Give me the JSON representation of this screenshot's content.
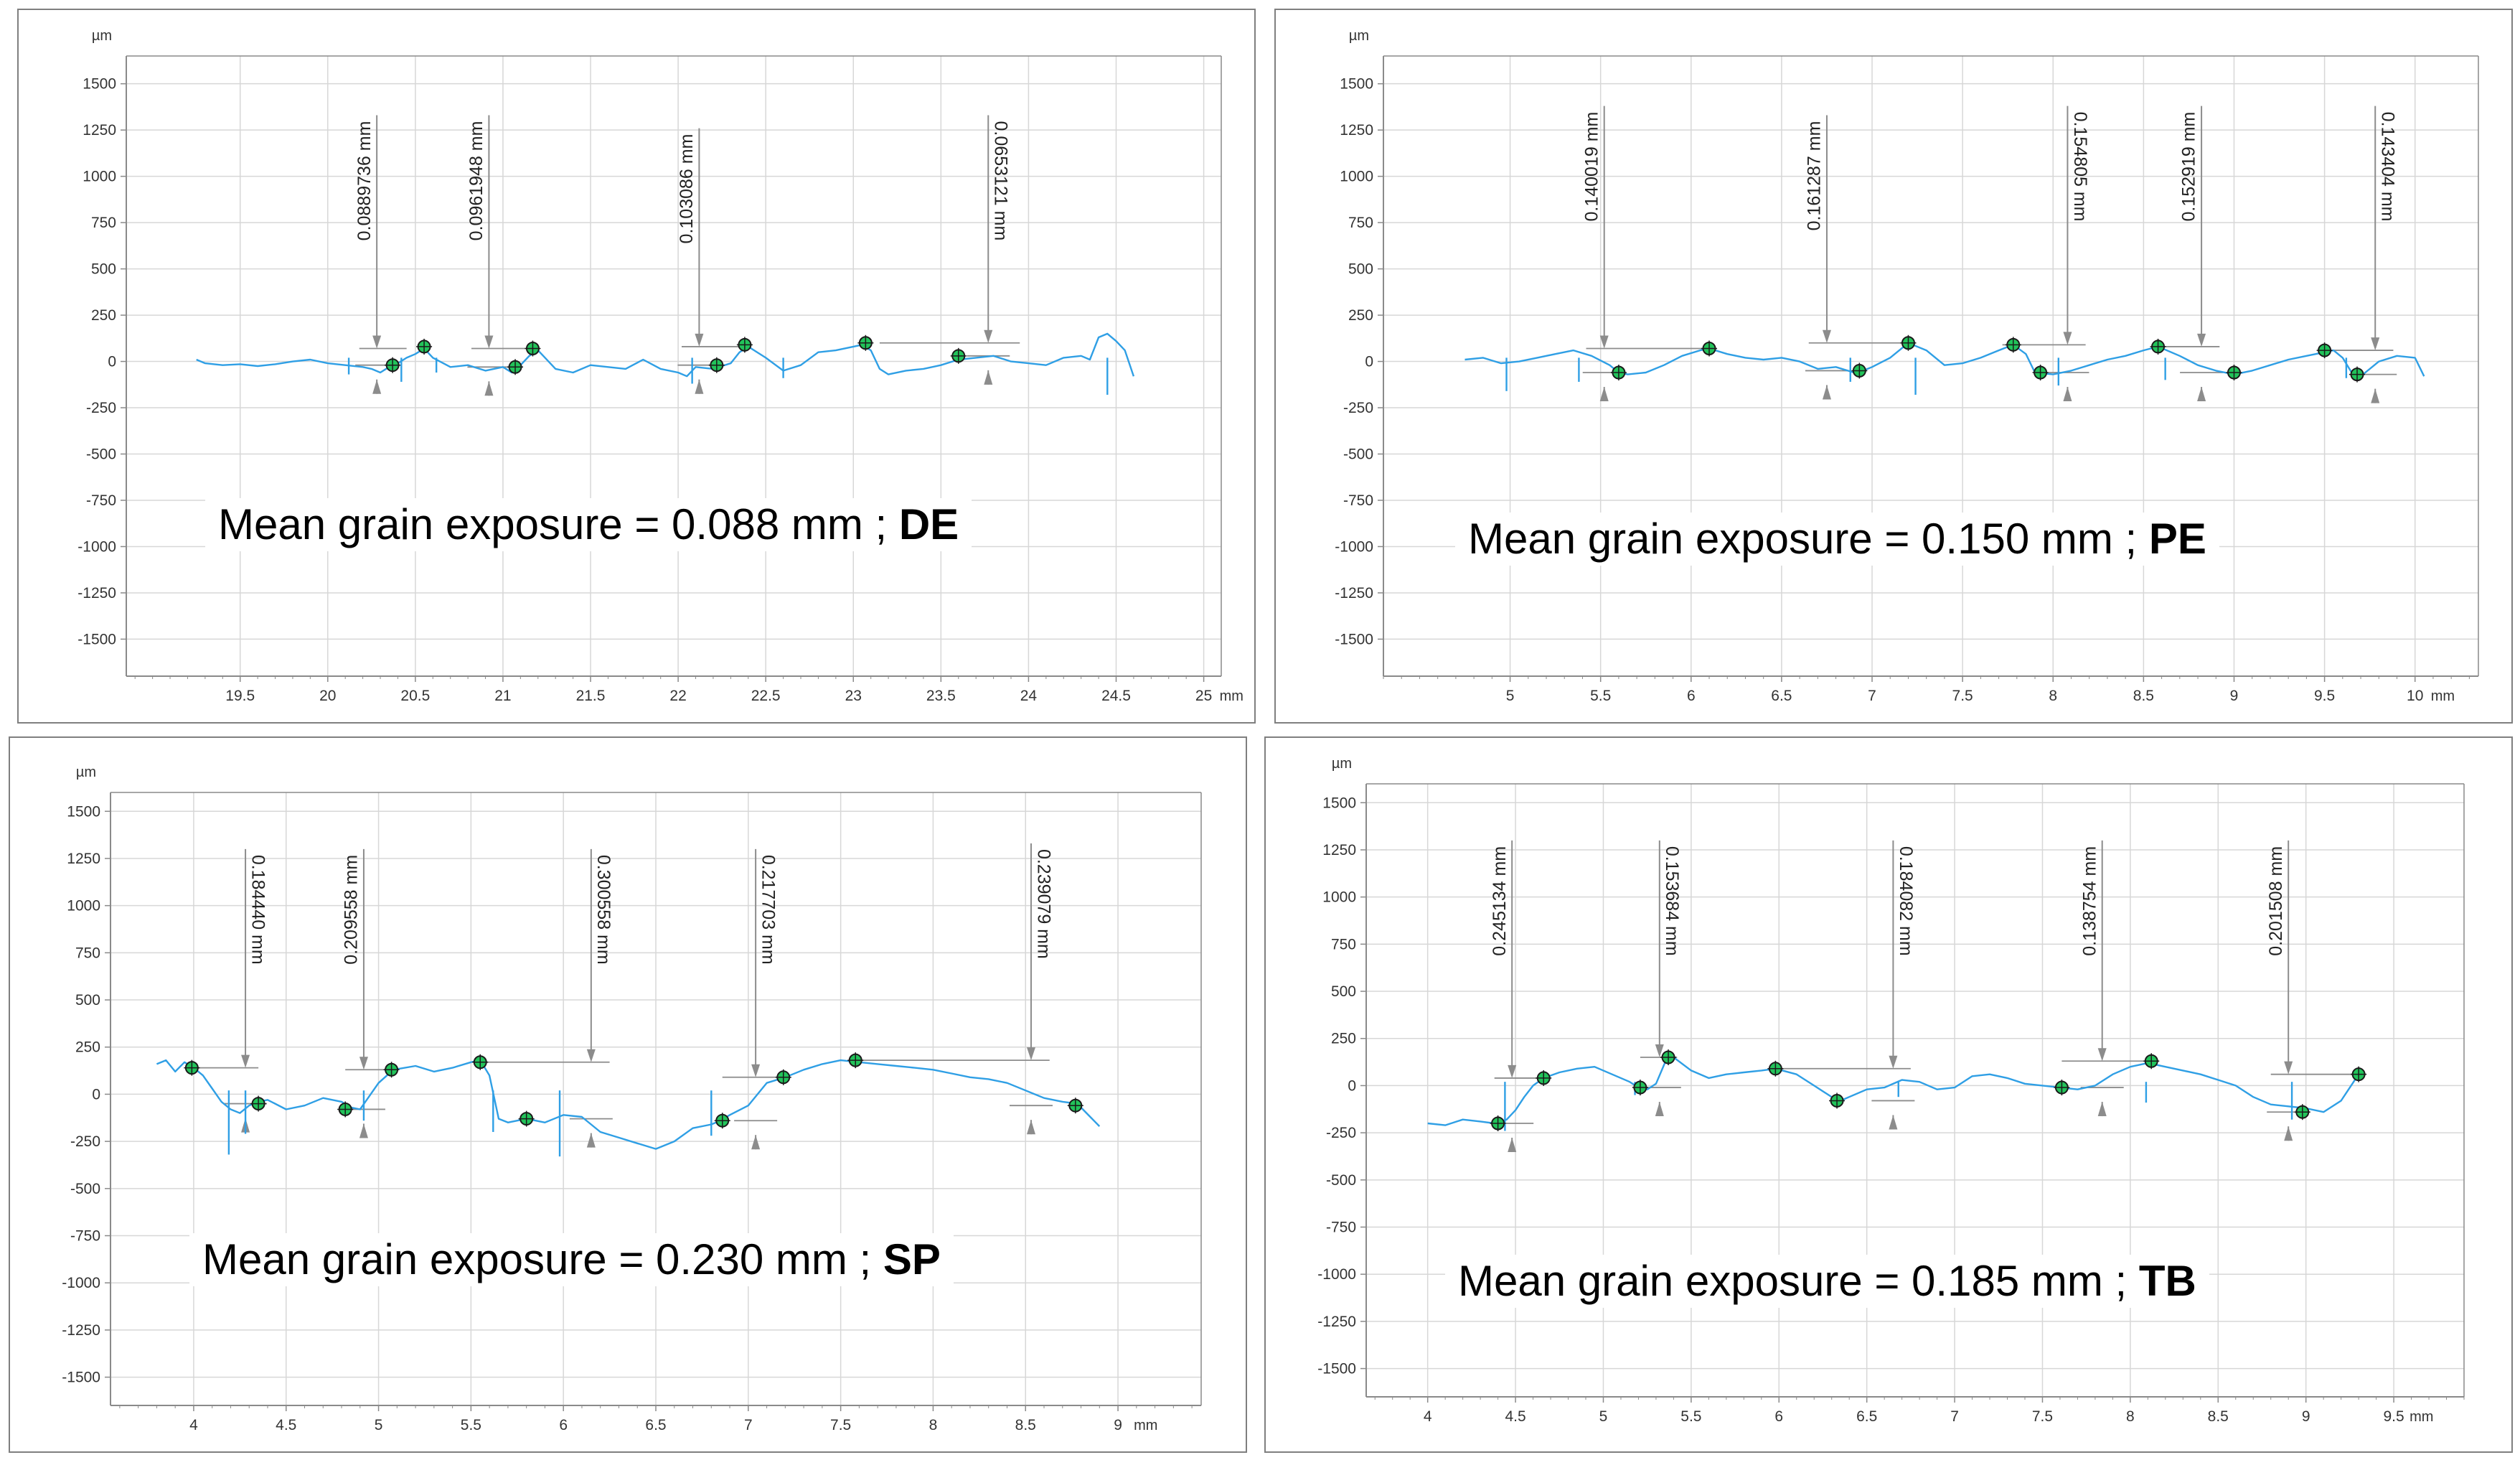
{
  "colors": {
    "profile": "#2f9fe5",
    "marker_fill": "#22c35a",
    "marker_stroke": "#1a1a1a",
    "measure": "#8c8c8c",
    "grid": "#d7d7d7",
    "axis": "#8a8a8a"
  },
  "chart_data": [
    {
      "type": "line",
      "id": "DE",
      "y_unit": "µm",
      "x_unit": "mm",
      "ylim": [
        -1700,
        1650
      ],
      "xlim": [
        18.85,
        25.1
      ],
      "yticks": [
        -1500,
        -1250,
        -1000,
        -750,
        -500,
        -250,
        0,
        250,
        500,
        750,
        1000,
        1250,
        1500
      ],
      "xticks": [
        19.5,
        20,
        20.5,
        21,
        21.5,
        22,
        22.5,
        23,
        23.5,
        24,
        24.5,
        25
      ],
      "grid": true,
      "caption_text": "Mean grain exposure = 0.088 mm ; ",
      "caption_tag": "DE",
      "profile": {
        "x": [
          19.25,
          19.3,
          19.4,
          19.5,
          19.6,
          19.7,
          19.8,
          19.9,
          20.0,
          20.1,
          20.2,
          20.25,
          20.3,
          20.35,
          20.4,
          20.45,
          20.5,
          20.55,
          20.6,
          20.7,
          20.8,
          20.9,
          21.0,
          21.05,
          21.1,
          21.15,
          21.2,
          21.3,
          21.4,
          21.5,
          21.6,
          21.7,
          21.8,
          21.9,
          22.0,
          22.05,
          22.1,
          22.2,
          22.3,
          22.35,
          22.4,
          22.5,
          22.6,
          22.7,
          22.8,
          22.9,
          23.0,
          23.05,
          23.1,
          23.15,
          23.2,
          23.3,
          23.4,
          23.5,
          23.6,
          23.7,
          23.8,
          23.9,
          24.0,
          24.1,
          24.2,
          24.3,
          24.35,
          24.4,
          24.45,
          24.5,
          24.55,
          24.6
        ],
        "y": [
          10,
          -10,
          -20,
          -15,
          -25,
          -15,
          0,
          10,
          -10,
          -20,
          -30,
          -40,
          -60,
          -30,
          -10,
          20,
          40,
          70,
          20,
          -30,
          -20,
          -50,
          -30,
          -60,
          -20,
          30,
          60,
          -40,
          -60,
          -20,
          -30,
          -40,
          10,
          -40,
          -60,
          -80,
          -30,
          -40,
          -10,
          50,
          80,
          20,
          -50,
          -20,
          50,
          60,
          80,
          90,
          60,
          -40,
          -70,
          -50,
          -40,
          -20,
          10,
          20,
          30,
          0,
          -10,
          -20,
          20,
          30,
          10,
          130,
          150,
          110,
          60,
          -80
        ]
      },
      "spikes": [
        {
          "x": 20.12,
          "y": -70
        },
        {
          "x": 20.42,
          "y": -110
        },
        {
          "x": 20.62,
          "y": -60
        },
        {
          "x": 22.08,
          "y": -120
        },
        {
          "x": 22.6,
          "y": -90
        },
        {
          "x": 24.45,
          "y": -180
        }
      ],
      "markers": [
        {
          "x": 20.37,
          "y": -20
        },
        {
          "x": 20.55,
          "y": 80
        },
        {
          "x": 21.07,
          "y": -30
        },
        {
          "x": 21.17,
          "y": 70
        },
        {
          "x": 22.22,
          "y": -20
        },
        {
          "x": 22.38,
          "y": 90
        },
        {
          "x": 23.07,
          "y": 100
        },
        {
          "x": 23.6,
          "y": 30
        }
      ],
      "measurements": [
        {
          "label": "0.0889736 mm",
          "x": 20.28,
          "y_top": 1330,
          "y_hi": 70,
          "y_lo": -20,
          "hx0": 20.18,
          "hx1": 20.45,
          "label_side": "left"
        },
        {
          "label": "0.0961948 mm",
          "x": 20.92,
          "y_top": 1330,
          "y_hi": 70,
          "y_lo": -30,
          "hx0": 20.82,
          "hx1": 21.15,
          "label_side": "left"
        },
        {
          "label": "0.103086 mm",
          "x": 22.12,
          "y_top": 1260,
          "y_hi": 80,
          "y_lo": -20,
          "hx0": 22.02,
          "hx1": 22.38,
          "label_side": "left"
        },
        {
          "label": "0.0653121 mm",
          "x": 23.77,
          "y_top": 1330,
          "y_hi": 100,
          "y_lo": 30,
          "hx0": 23.15,
          "hx1": 23.95,
          "label_side": "right"
        }
      ]
    },
    {
      "type": "line",
      "id": "PE",
      "y_unit": "µm",
      "x_unit": "mm",
      "ylim": [
        -1700,
        1650
      ],
      "xlim": [
        4.3,
        10.35
      ],
      "yticks": [
        -1500,
        -1250,
        -1000,
        -750,
        -500,
        -250,
        0,
        250,
        500,
        750,
        1000,
        1250,
        1500
      ],
      "xticks": [
        5,
        5.5,
        6,
        6.5,
        7,
        7.5,
        8,
        8.5,
        9,
        9.5,
        10
      ],
      "grid": true,
      "caption_text": "Mean grain exposure = 0.150 mm ; ",
      "caption_tag": "PE",
      "profile": {
        "x": [
          4.75,
          4.85,
          4.95,
          5.05,
          5.15,
          5.25,
          5.35,
          5.45,
          5.55,
          5.6,
          5.65,
          5.75,
          5.85,
          5.95,
          6.05,
          6.1,
          6.2,
          6.3,
          6.4,
          6.5,
          6.6,
          6.7,
          6.8,
          6.9,
          6.95,
          7.0,
          7.1,
          7.2,
          7.3,
          7.4,
          7.5,
          7.6,
          7.7,
          7.78,
          7.85,
          7.9,
          8.0,
          8.1,
          8.2,
          8.3,
          8.4,
          8.5,
          8.58,
          8.7,
          8.8,
          8.9,
          9.0,
          9.1,
          9.2,
          9.3,
          9.4,
          9.5,
          9.55,
          9.6,
          9.65,
          9.7,
          9.8,
          9.9,
          10.0,
          10.05
        ],
        "y": [
          10,
          20,
          -10,
          0,
          20,
          40,
          60,
          30,
          -20,
          -60,
          -70,
          -60,
          -20,
          30,
          60,
          70,
          40,
          20,
          10,
          20,
          0,
          -40,
          -30,
          -60,
          -50,
          -30,
          20,
          100,
          60,
          -20,
          -10,
          20,
          60,
          90,
          40,
          -60,
          -70,
          -50,
          -20,
          10,
          30,
          60,
          80,
          30,
          -20,
          -50,
          -70,
          -50,
          -20,
          10,
          30,
          50,
          60,
          20,
          -60,
          -80,
          0,
          30,
          20,
          -80
        ]
      },
      "spikes": [
        {
          "x": 4.98,
          "y": -160
        },
        {
          "x": 5.38,
          "y": -110
        },
        {
          "x": 6.88,
          "y": -110
        },
        {
          "x": 7.24,
          "y": -180
        },
        {
          "x": 8.03,
          "y": -130
        },
        {
          "x": 8.62,
          "y": -100
        },
        {
          "x": 9.62,
          "y": -90
        }
      ],
      "markers": [
        {
          "x": 5.6,
          "y": -60
        },
        {
          "x": 6.1,
          "y": 70
        },
        {
          "x": 6.93,
          "y": -50
        },
        {
          "x": 7.2,
          "y": 100
        },
        {
          "x": 7.78,
          "y": 90
        },
        {
          "x": 7.93,
          "y": -60
        },
        {
          "x": 8.58,
          "y": 80
        },
        {
          "x": 9.0,
          "y": -60
        },
        {
          "x": 9.5,
          "y": 60
        },
        {
          "x": 9.68,
          "y": -70
        }
      ],
      "measurements": [
        {
          "label": "0.140019 mm",
          "x": 5.52,
          "y_top": 1380,
          "y_hi": 70,
          "y_lo": -60,
          "hx0": 5.42,
          "hx1": 6.08,
          "label_side": "left"
        },
        {
          "label": "0.161287 mm",
          "x": 6.75,
          "y_top": 1330,
          "y_hi": 100,
          "y_lo": -50,
          "hx0": 6.65,
          "hx1": 7.2,
          "label_side": "left"
        },
        {
          "label": "0.154805 mm",
          "x": 8.08,
          "y_top": 1380,
          "y_hi": 90,
          "y_lo": -60,
          "hx0": 7.72,
          "hx1": 8.18,
          "label_side": "right"
        },
        {
          "label": "0.152919 mm",
          "x": 8.82,
          "y_top": 1380,
          "y_hi": 80,
          "y_lo": -60,
          "hx0": 8.58,
          "hx1": 8.92,
          "label_side": "left"
        },
        {
          "label": "0.143404 mm",
          "x": 9.78,
          "y_top": 1380,
          "y_hi": 60,
          "y_lo": -70,
          "hx0": 9.5,
          "hx1": 9.88,
          "label_side": "right"
        }
      ]
    },
    {
      "type": "line",
      "id": "SP",
      "y_unit": "µm",
      "x_unit": "mm",
      "ylim": [
        -1650,
        1600
      ],
      "xlim": [
        3.55,
        9.45
      ],
      "yticks": [
        -1500,
        -1250,
        -1000,
        -750,
        -500,
        -250,
        0,
        250,
        500,
        750,
        1000,
        1250,
        1500
      ],
      "xticks": [
        4,
        4.5,
        5,
        5.5,
        6,
        6.5,
        7,
        7.5,
        8,
        8.5,
        9
      ],
      "grid": true,
      "caption_text": "Mean grain exposure = 0.230 mm ; ",
      "caption_tag": "SP",
      "profile": {
        "x": [
          3.8,
          3.85,
          3.9,
          3.95,
          4.0,
          4.05,
          4.1,
          4.15,
          4.2,
          4.25,
          4.3,
          4.35,
          4.4,
          4.5,
          4.6,
          4.7,
          4.8,
          4.85,
          4.9,
          5.0,
          5.08,
          5.2,
          5.3,
          5.4,
          5.5,
          5.55,
          5.6,
          5.65,
          5.7,
          5.8,
          5.9,
          6.0,
          6.1,
          6.2,
          6.3,
          6.4,
          6.5,
          6.6,
          6.7,
          6.8,
          6.85,
          6.9,
          7.0,
          7.1,
          7.2,
          7.3,
          7.4,
          7.5,
          7.6,
          7.7,
          7.8,
          7.9,
          8.0,
          8.1,
          8.2,
          8.3,
          8.4,
          8.5,
          8.6,
          8.7,
          8.78,
          8.85,
          8.9
        ],
        "y": [
          160,
          180,
          120,
          170,
          140,
          100,
          30,
          -40,
          -80,
          -100,
          -60,
          -40,
          -30,
          -80,
          -60,
          -20,
          -40,
          -70,
          -80,
          60,
          130,
          150,
          120,
          140,
          170,
          180,
          100,
          -130,
          -150,
          -130,
          -150,
          -110,
          -120,
          -200,
          -230,
          -260,
          -290,
          -250,
          -180,
          -160,
          -140,
          -110,
          -60,
          60,
          90,
          130,
          160,
          180,
          170,
          160,
          150,
          140,
          130,
          110,
          90,
          80,
          60,
          20,
          -20,
          -40,
          -50,
          -120,
          -170
        ]
      },
      "spikes": [
        {
          "x": 4.19,
          "y": -320
        },
        {
          "x": 4.28,
          "y": -210
        },
        {
          "x": 4.92,
          "y": -140
        },
        {
          "x": 5.62,
          "y": -200
        },
        {
          "x": 5.98,
          "y": -330
        },
        {
          "x": 6.8,
          "y": -220
        }
      ],
      "markers": [
        {
          "x": 3.99,
          "y": 140
        },
        {
          "x": 4.35,
          "y": -50
        },
        {
          "x": 4.82,
          "y": -80
        },
        {
          "x": 5.07,
          "y": 130
        },
        {
          "x": 5.55,
          "y": 170
        },
        {
          "x": 5.8,
          "y": -130
        },
        {
          "x": 6.86,
          "y": -140
        },
        {
          "x": 7.19,
          "y": 90
        },
        {
          "x": 7.58,
          "y": 180
        },
        {
          "x": 8.77,
          "y": -60
        }
      ],
      "measurements": [
        {
          "label": "0.184440 mm",
          "x": 4.28,
          "y_top": 1300,
          "y_hi": 140,
          "y_lo": -50,
          "hx0": 3.99,
          "hx1": 4.35,
          "label_side": "right"
        },
        {
          "label": "0.209558 mm",
          "x": 4.92,
          "y_top": 1300,
          "y_hi": 130,
          "y_lo": -80,
          "hx0": 4.82,
          "hx1": 5.1,
          "label_side": "left"
        },
        {
          "label": "0.300558 mm",
          "x": 6.15,
          "y_top": 1300,
          "y_hi": 170,
          "y_lo": -130,
          "hx0": 5.55,
          "hx1": 6.25,
          "label_side": "right"
        },
        {
          "label": "0.217703 mm",
          "x": 7.04,
          "y_top": 1300,
          "y_hi": 90,
          "y_lo": -140,
          "hx0": 6.86,
          "hx1": 7.19,
          "label_side": "right"
        },
        {
          "label": "0.239079 mm",
          "x": 8.53,
          "y_top": 1330,
          "y_hi": 180,
          "y_lo": -60,
          "hx0": 7.58,
          "hx1": 8.63,
          "label_side": "right"
        }
      ]
    },
    {
      "type": "line",
      "id": "TB",
      "y_unit": "µm",
      "x_unit": "mm",
      "ylim": [
        -1650,
        1600
      ],
      "xlim": [
        3.65,
        9.9
      ],
      "yticks": [
        -1500,
        -1250,
        -1000,
        -750,
        -500,
        -250,
        0,
        250,
        500,
        750,
        1000,
        1250,
        1500
      ],
      "xticks": [
        4,
        4.5,
        5,
        5.5,
        6,
        6.5,
        7,
        7.5,
        8,
        8.5,
        9,
        9.5
      ],
      "grid": true,
      "caption_text": "Mean grain exposure = 0.185 mm ; ",
      "caption_tag": "TB",
      "profile": {
        "x": [
          4.0,
          4.1,
          4.2,
          4.3,
          4.38,
          4.45,
          4.5,
          4.55,
          4.6,
          4.66,
          4.75,
          4.85,
          4.95,
          5.05,
          5.15,
          5.2,
          5.25,
          5.3,
          5.35,
          5.4,
          5.5,
          5.6,
          5.7,
          5.8,
          5.9,
          5.98,
          6.1,
          6.2,
          6.3,
          6.35,
          6.4,
          6.5,
          6.6,
          6.7,
          6.8,
          6.9,
          7.0,
          7.1,
          7.2,
          7.3,
          7.4,
          7.5,
          7.6,
          7.7,
          7.8,
          7.9,
          8.0,
          8.1,
          8.2,
          8.3,
          8.4,
          8.5,
          8.6,
          8.7,
          8.8,
          8.9,
          9.0,
          9.1,
          9.2,
          9.3
        ],
        "y": [
          -200,
          -210,
          -180,
          -190,
          -200,
          -180,
          -130,
          -60,
          0,
          40,
          70,
          90,
          100,
          60,
          20,
          -10,
          -20,
          10,
          120,
          150,
          80,
          40,
          60,
          70,
          80,
          90,
          60,
          0,
          -60,
          -80,
          -60,
          -20,
          -10,
          30,
          20,
          -20,
          -10,
          50,
          60,
          40,
          10,
          0,
          -10,
          -20,
          0,
          60,
          100,
          120,
          100,
          80,
          60,
          30,
          0,
          -60,
          -100,
          -110,
          -120,
          -140,
          -80,
          60
        ]
      },
      "spikes": [
        {
          "x": 4.44,
          "y": -240
        },
        {
          "x": 5.18,
          "y": -50
        },
        {
          "x": 6.68,
          "y": -60
        },
        {
          "x": 8.09,
          "y": -90
        },
        {
          "x": 8.92,
          "y": -180
        }
      ],
      "markers": [
        {
          "x": 4.4,
          "y": -200
        },
        {
          "x": 4.66,
          "y": 40
        },
        {
          "x": 5.21,
          "y": -10
        },
        {
          "x": 5.37,
          "y": 150
        },
        {
          "x": 5.98,
          "y": 90
        },
        {
          "x": 6.33,
          "y": -80
        },
        {
          "x": 7.61,
          "y": -10
        },
        {
          "x": 8.12,
          "y": 130
        },
        {
          "x": 8.98,
          "y": -140
        },
        {
          "x": 9.3,
          "y": 60
        }
      ],
      "measurements": [
        {
          "label": "0.245134 mm",
          "x": 4.48,
          "y_top": 1300,
          "y_hi": 40,
          "y_lo": -200,
          "hx0": 4.38,
          "hx1": 4.66,
          "label_side": "left"
        },
        {
          "label": "0.153684 mm",
          "x": 5.32,
          "y_top": 1300,
          "y_hi": 150,
          "y_lo": -10,
          "hx0": 5.21,
          "hx1": 5.42,
          "label_side": "right"
        },
        {
          "label": "0.184082 mm",
          "x": 6.65,
          "y_top": 1300,
          "y_hi": 90,
          "y_lo": -80,
          "hx0": 5.98,
          "hx1": 6.75,
          "label_side": "right"
        },
        {
          "label": "0.138754 mm",
          "x": 7.84,
          "y_top": 1300,
          "y_hi": 130,
          "y_lo": -10,
          "hx0": 7.61,
          "hx1": 8.12,
          "label_side": "left"
        },
        {
          "label": "0.201508 mm",
          "x": 8.9,
          "y_top": 1300,
          "y_hi": 60,
          "y_lo": -140,
          "hx0": 8.8,
          "hx1": 9.3,
          "label_side": "left"
        }
      ]
    }
  ]
}
